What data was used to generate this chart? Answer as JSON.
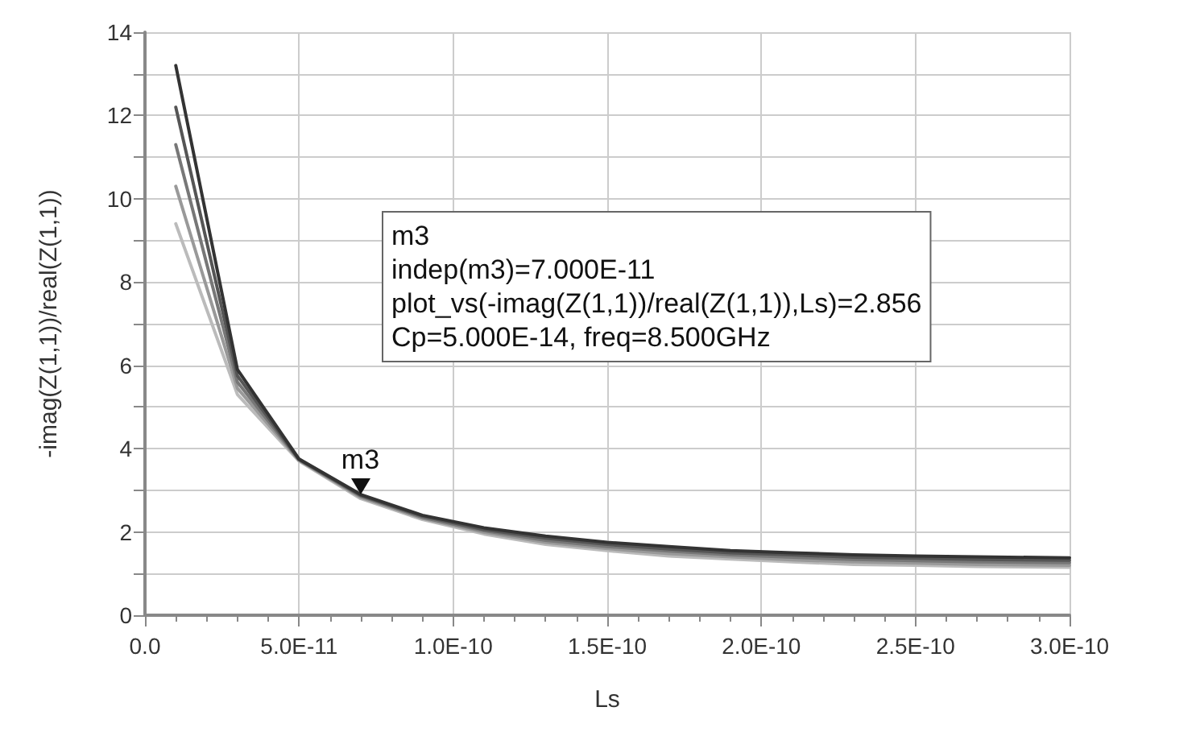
{
  "chart_data": {
    "type": "line",
    "xlabel": "Ls",
    "ylabel": "-imag(Z(1,1))/real(Z(1,1))",
    "x": [
      1e-11,
      3e-11,
      5e-11,
      7e-11,
      9e-11,
      1.1e-10,
      1.3e-10,
      1.5e-10,
      1.7e-10,
      1.9e-10,
      2.1e-10,
      2.3e-10,
      2.5e-10,
      2.7e-10,
      3e-10
    ],
    "series": [
      {
        "color": "#333333",
        "values": [
          13.2,
          5.9,
          3.75,
          2.9,
          2.4,
          2.1,
          1.9,
          1.75,
          1.65,
          1.55,
          1.5,
          1.45,
          1.42,
          1.4,
          1.38
        ]
      },
      {
        "color": "#555555",
        "values": [
          12.2,
          5.75,
          3.74,
          2.88,
          2.38,
          2.06,
          1.85,
          1.7,
          1.59,
          1.5,
          1.45,
          1.39,
          1.37,
          1.34,
          1.32
        ]
      },
      {
        "color": "#777777",
        "values": [
          11.3,
          5.6,
          3.73,
          2.86,
          2.35,
          2.03,
          1.8,
          1.65,
          1.54,
          1.45,
          1.39,
          1.34,
          1.31,
          1.28,
          1.26
        ]
      },
      {
        "color": "#999999",
        "values": [
          10.3,
          5.45,
          3.72,
          2.83,
          2.33,
          1.99,
          1.75,
          1.6,
          1.48,
          1.4,
          1.33,
          1.28,
          1.25,
          1.22,
          1.2
        ]
      },
      {
        "color": "#bbbbbb",
        "values": [
          9.4,
          5.3,
          3.7,
          2.8,
          2.3,
          1.95,
          1.7,
          1.55,
          1.42,
          1.35,
          1.28,
          1.22,
          1.2,
          1.17,
          1.15
        ]
      }
    ],
    "xlim": [
      0,
      3e-10
    ],
    "xticks": [
      {
        "value": 0,
        "label": "0.0"
      },
      {
        "value": 5e-11,
        "label": "5.0E-11"
      },
      {
        "value": 1e-10,
        "label": "1.0E-10"
      },
      {
        "value": 1.5e-10,
        "label": "1.5E-10"
      },
      {
        "value": 2e-10,
        "label": "2.0E-10"
      },
      {
        "value": 2.5e-10,
        "label": "2.5E-10"
      },
      {
        "value": 3e-10,
        "label": "3.0E-10"
      }
    ],
    "ylim": [
      0,
      14
    ],
    "yticks": [
      0,
      2,
      4,
      6,
      8,
      10,
      12,
      14
    ],
    "annotations": [
      {
        "text": "m3",
        "x": 7e-11,
        "y": 2.856
      },
      "m3\nindep(m3)=7.000E-11\nplot_vs(-imag(Z(1,1))/real(Z(1,1)),Ls)=2.856\nCp=5.000E-14, freq=8.500GHz"
    ],
    "grid": true,
    "marker": "none",
    "line_style": "solid"
  }
}
